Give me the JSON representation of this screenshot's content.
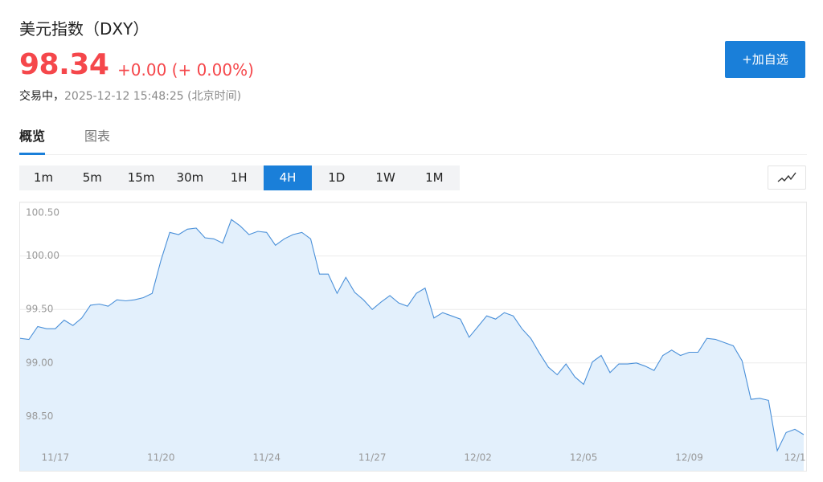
{
  "header": {
    "title": "美元指数（DXY）",
    "price": "98.34",
    "change": "+0.00 (+ 0.00%)",
    "status": "交易中，",
    "time": "2025-12-12 15:48:25 (北京时间)",
    "follow_button": "+加自选"
  },
  "tabs": [
    "概览",
    "图表"
  ],
  "active_tab": 0,
  "intervals": [
    "1m",
    "5m",
    "15m",
    "30m",
    "1H",
    "4H",
    "1D",
    "1W",
    "1M"
  ],
  "active_interval": 5,
  "chart_data": {
    "type": "area",
    "color": "#4a90d9",
    "fill_color": "#e3f0fc",
    "grid": true,
    "ylim": [
      98.0,
      100.5
    ],
    "yticks": [
      {
        "value": 98.5,
        "label": "98.50"
      },
      {
        "value": 99,
        "label": "99.00"
      },
      {
        "value": 99.5,
        "label": "99.50"
      },
      {
        "value": 100,
        "label": "100.00"
      },
      {
        "value": 100.5,
        "label": "100.50"
      }
    ],
    "categories": [
      null,
      null,
      null,
      null,
      "11/17",
      null,
      null,
      null,
      null,
      null,
      null,
      null,
      null,
      null,
      null,
      null,
      "11/20",
      null,
      null,
      null,
      null,
      null,
      null,
      null,
      null,
      null,
      null,
      null,
      "11/24",
      null,
      null,
      null,
      null,
      null,
      null,
      null,
      null,
      null,
      null,
      null,
      "11/27",
      null,
      null,
      null,
      null,
      null,
      null,
      null,
      null,
      null,
      null,
      null,
      "12/02",
      null,
      null,
      null,
      null,
      null,
      null,
      null,
      null,
      null,
      null,
      null,
      "12/05",
      null,
      null,
      null,
      null,
      null,
      null,
      null,
      null,
      null,
      null,
      null,
      "12/09",
      null,
      null,
      null,
      null,
      null,
      null,
      null,
      null,
      null,
      null,
      null,
      "12/1",
      null
    ],
    "values": [
      99.23,
      99.22,
      99.34,
      99.32,
      99.32,
      99.4,
      99.35,
      99.42,
      99.54,
      99.55,
      99.53,
      99.59,
      99.58,
      99.59,
      99.61,
      99.65,
      99.96,
      100.22,
      100.2,
      100.25,
      100.26,
      100.17,
      100.16,
      100.12,
      100.34,
      100.28,
      100.2,
      100.23,
      100.22,
      100.1,
      100.16,
      100.2,
      100.22,
      100.16,
      99.83,
      99.83,
      99.65,
      99.8,
      99.66,
      99.59,
      99.5,
      99.57,
      99.63,
      99.56,
      99.53,
      99.65,
      99.7,
      99.42,
      99.47,
      99.44,
      99.41,
      99.24,
      99.34,
      99.44,
      99.41,
      99.47,
      99.44,
      99.32,
      99.23,
      99.09,
      98.96,
      98.89,
      98.99,
      98.87,
      98.8,
      99.01,
      99.07,
      98.91,
      98.99,
      98.99,
      99.0,
      98.97,
      98.93,
      99.07,
      99.12,
      99.07,
      99.1,
      99.1,
      99.23,
      99.22,
      99.19,
      99.16,
      99.02,
      98.66,
      98.67,
      98.65,
      98.18,
      98.35,
      98.38,
      98.33
    ]
  }
}
